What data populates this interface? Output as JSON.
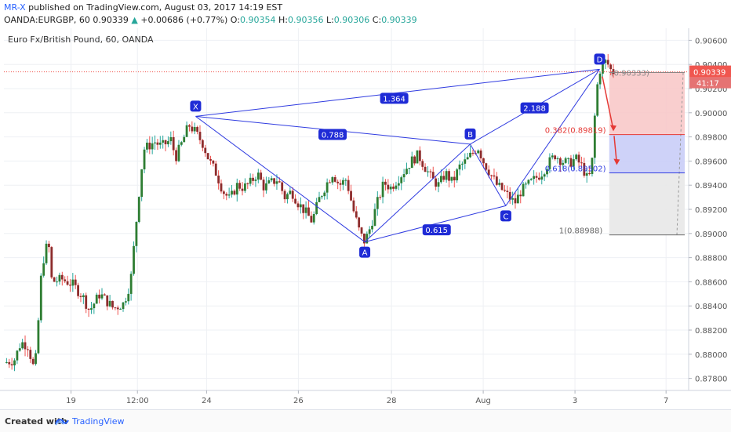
{
  "header": {
    "author": "MR-X",
    "published": "published on TradingView.com, August 03, 2017 14:19 EST",
    "symbol": "OANDA:EURGBP, 60",
    "last": "0.90339",
    "change_arrow": "▲",
    "change": "+0.00686 (+0.77%)",
    "o_label": "O:",
    "o": "0.90354",
    "h_label": "H:",
    "h": "0.90356",
    "l_label": "L:",
    "l": "0.90306",
    "c_label": "C:",
    "c": "0.90339"
  },
  "chart_title": "Euro Fx/British Pound, 60, OANDA",
  "footer": {
    "created_with": "Created with",
    "brand": "TradingView"
  },
  "colors": {
    "bull": "#26a69a",
    "bear": "#ef5350",
    "candle_body_bull": "#2e7d32",
    "candle_body_bear": "#8d2c2c",
    "pattern": "#2f3be0",
    "label_bg": "#1f2bd6",
    "arrow": "#e53935",
    "zone_red": "#f8c6c6",
    "zone_blue": "#c9cdf7",
    "zone_gray": "#e8e8e8",
    "price_tag": "#f0564f",
    "timer_tag": "#e57373"
  },
  "chart_data": {
    "type": "candlestick",
    "title": "Euro Fx/British Pound, 60, OANDA",
    "ylim": [
      0.877,
      0.907
    ],
    "y_ticks": [
      0.906,
      0.904,
      0.902,
      0.9,
      0.898,
      0.896,
      0.894,
      0.892,
      0.89,
      0.888,
      0.886,
      0.884,
      0.882,
      0.88,
      0.878
    ],
    "x_tick_labels": [
      {
        "label": "19",
        "pos": 0.098
      },
      {
        "label": "12:00",
        "pos": 0.195
      },
      {
        "label": "24",
        "pos": 0.296
      },
      {
        "label": "26",
        "pos": 0.43
      },
      {
        "label": "28",
        "pos": 0.566
      },
      {
        "label": "Aug",
        "pos": 0.7
      },
      {
        "label": "3",
        "pos": 0.834
      },
      {
        "label": "7",
        "pos": 0.967
      }
    ],
    "price_path": [
      [
        0.0,
        0.8793
      ],
      [
        0.015,
        0.8795
      ],
      [
        0.025,
        0.881
      ],
      [
        0.035,
        0.8807
      ],
      [
        0.045,
        0.8785
      ],
      [
        0.05,
        0.8825
      ],
      [
        0.055,
        0.887
      ],
      [
        0.06,
        0.8885
      ],
      [
        0.065,
        0.8893
      ],
      [
        0.07,
        0.886
      ],
      [
        0.085,
        0.8862
      ],
      [
        0.1,
        0.8858
      ],
      [
        0.115,
        0.8848
      ],
      [
        0.125,
        0.8836
      ],
      [
        0.14,
        0.885
      ],
      [
        0.16,
        0.8838
      ],
      [
        0.175,
        0.8842
      ],
      [
        0.185,
        0.886
      ],
      [
        0.19,
        0.889
      ],
      [
        0.195,
        0.892
      ],
      [
        0.2,
        0.895
      ],
      [
        0.205,
        0.897
      ],
      [
        0.21,
        0.8972
      ],
      [
        0.22,
        0.8976
      ],
      [
        0.23,
        0.8972
      ],
      [
        0.245,
        0.8978
      ],
      [
        0.25,
        0.8962
      ],
      [
        0.26,
        0.8975
      ],
      [
        0.27,
        0.899
      ],
      [
        0.278,
        0.8985
      ],
      [
        0.29,
        0.8975
      ],
      [
        0.3,
        0.896
      ],
      [
        0.31,
        0.895
      ],
      [
        0.32,
        0.8935
      ],
      [
        0.33,
        0.8928
      ],
      [
        0.34,
        0.894
      ],
      [
        0.35,
        0.8938
      ],
      [
        0.36,
        0.8942
      ],
      [
        0.37,
        0.895
      ],
      [
        0.38,
        0.8938
      ],
      [
        0.39,
        0.8942
      ],
      [
        0.4,
        0.8945
      ],
      [
        0.41,
        0.893
      ],
      [
        0.42,
        0.8935
      ],
      [
        0.43,
        0.8925
      ],
      [
        0.44,
        0.8918
      ],
      [
        0.45,
        0.891
      ],
      [
        0.46,
        0.8928
      ],
      [
        0.47,
        0.894
      ],
      [
        0.48,
        0.895
      ],
      [
        0.49,
        0.894
      ],
      [
        0.5,
        0.8945
      ],
      [
        0.51,
        0.892
      ],
      [
        0.52,
        0.89
      ],
      [
        0.527,
        0.8893
      ],
      [
        0.535,
        0.8905
      ],
      [
        0.545,
        0.8925
      ],
      [
        0.555,
        0.8942
      ],
      [
        0.565,
        0.8938
      ],
      [
        0.575,
        0.8945
      ],
      [
        0.585,
        0.8952
      ],
      [
        0.595,
        0.896
      ],
      [
        0.605,
        0.8965
      ],
      [
        0.615,
        0.8955
      ],
      [
        0.625,
        0.8945
      ],
      [
        0.635,
        0.894
      ],
      [
        0.645,
        0.895
      ],
      [
        0.655,
        0.8942
      ],
      [
        0.665,
        0.8955
      ],
      [
        0.675,
        0.896
      ],
      [
        0.685,
        0.8967
      ],
      [
        0.692,
        0.8972
      ],
      [
        0.7,
        0.896
      ],
      [
        0.71,
        0.895
      ],
      [
        0.72,
        0.894
      ],
      [
        0.73,
        0.8935
      ],
      [
        0.738,
        0.893
      ],
      [
        0.746,
        0.8925
      ],
      [
        0.755,
        0.8935
      ],
      [
        0.765,
        0.894
      ],
      [
        0.775,
        0.8945
      ],
      [
        0.785,
        0.895
      ],
      [
        0.795,
        0.8958
      ],
      [
        0.805,
        0.8965
      ],
      [
        0.815,
        0.896
      ],
      [
        0.825,
        0.8958
      ],
      [
        0.835,
        0.8962
      ],
      [
        0.845,
        0.8955
      ],
      [
        0.852,
        0.8945
      ],
      [
        0.858,
        0.895
      ],
      [
        0.862,
        0.899
      ],
      [
        0.866,
        0.902
      ],
      [
        0.87,
        0.9035
      ],
      [
        0.875,
        0.904
      ],
      [
        0.88,
        0.9043
      ],
      [
        0.885,
        0.9036
      ],
      [
        0.89,
        0.9034
      ]
    ],
    "pattern_points": [
      {
        "name": "X",
        "pos": 0.28,
        "price": 0.8997
      },
      {
        "name": "A",
        "pos": 0.527,
        "price": 0.8893
      },
      {
        "name": "B",
        "pos": 0.681,
        "price": 0.8974
      },
      {
        "name": "C",
        "pos": 0.733,
        "price": 0.8923
      },
      {
        "name": "D",
        "pos": 0.87,
        "price": 0.9036
      }
    ],
    "pattern_ratios": [
      {
        "label": "1.364",
        "pos": 0.57,
        "price": 0.9012
      },
      {
        "label": "0.788",
        "pos": 0.48,
        "price": 0.8982
      },
      {
        "label": "2.188",
        "pos": 0.775,
        "price": 0.9004
      },
      {
        "label": "0.615",
        "pos": 0.632,
        "price": 0.8903
      }
    ],
    "targets": [
      {
        "label": "(0.90333)",
        "price": 0.90333
      },
      {
        "label": "0.382(0.89819)",
        "price": 0.89819
      },
      {
        "label": "0.618(0.89502)",
        "price": 0.89502
      },
      {
        "label": "1(0.88988)",
        "price": 0.88988
      }
    ],
    "current_price": "0.90339",
    "timer": "41:17"
  }
}
